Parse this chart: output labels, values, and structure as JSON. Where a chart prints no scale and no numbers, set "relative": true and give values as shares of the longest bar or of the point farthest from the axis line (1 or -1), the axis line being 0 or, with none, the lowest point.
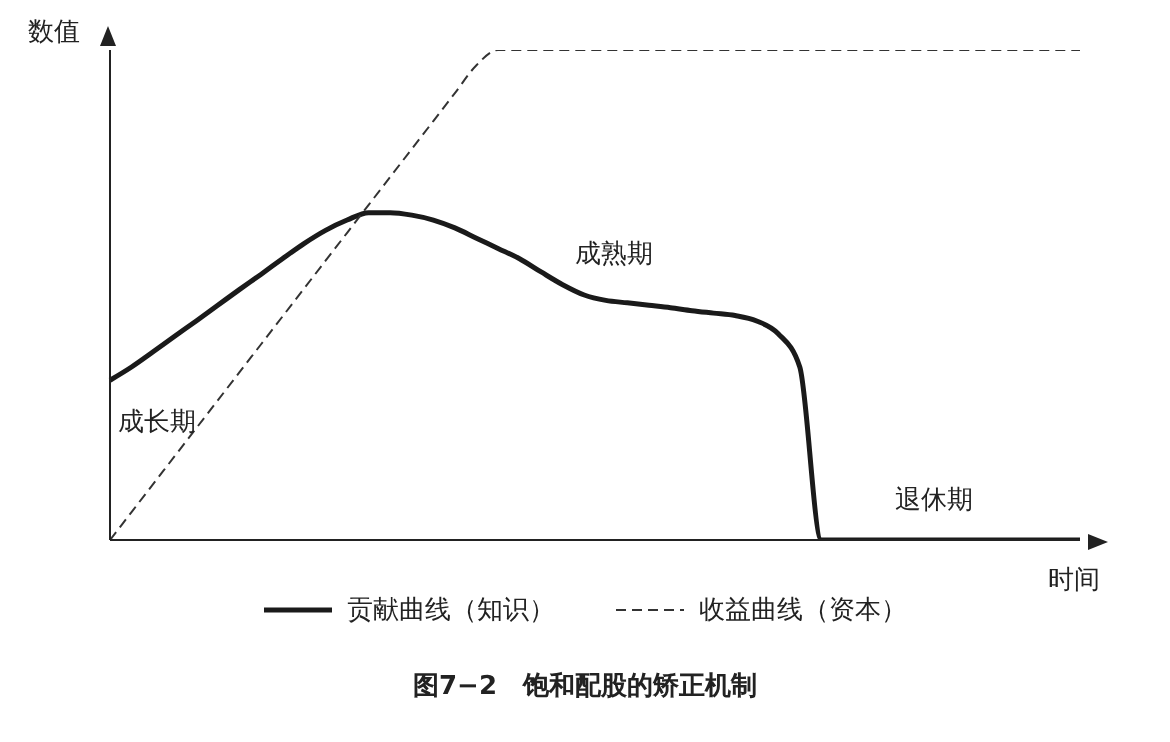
{
  "chart_data": {
    "type": "line",
    "title": "图7−2　饱和配股的矫正机制",
    "xlabel": "时间",
    "ylabel": "数值",
    "relative": true,
    "legend": "bottom",
    "grid": false,
    "marker": "none",
    "categories": [
      null,
      null,
      null,
      null,
      null,
      null,
      null,
      null,
      null,
      null,
      null,
      null,
      null,
      null,
      null,
      null,
      null,
      null,
      null,
      null,
      null,
      null,
      null,
      null,
      null,
      null,
      null,
      null,
      null,
      null,
      null,
      null,
      null,
      null,
      null,
      null,
      null,
      null,
      null,
      null,
      null,
      null,
      null,
      null,
      null,
      null
    ],
    "series": [
      {
        "name": "贡献曲线（知识）",
        "color": "#1a1a1a",
        "line_style": "solid",
        "values": [
          0.326,
          0.353,
          0.384,
          0.416,
          0.447,
          0.479,
          0.511,
          0.542,
          0.574,
          0.605,
          0.632,
          0.653,
          0.668,
          0.668,
          0.663,
          0.653,
          0.637,
          0.616,
          0.595,
          0.574,
          0.547,
          0.521,
          0.5,
          0.489,
          0.484,
          0.479,
          0.474,
          0.468,
          0.463,
          0.458,
          0.447,
          0.421,
          0.353,
          0,
          0,
          0,
          0,
          0,
          0,
          0,
          0,
          0,
          0,
          0,
          0,
          0
        ]
      },
      {
        "name": "收益曲线（资本）",
        "color": "#333333",
        "line_style": "dashed",
        "values": [
          0,
          0.057,
          0.114,
          0.171,
          0.228,
          0.285,
          0.342,
          0.399,
          0.456,
          0.513,
          0.57,
          0.627,
          0.684,
          0.741,
          0.798,
          0.855,
          0.912,
          0.969,
          1,
          1,
          1,
          1,
          1,
          1,
          1,
          1,
          1,
          1,
          1,
          1,
          1,
          1,
          1,
          1,
          1,
          1,
          1,
          1,
          1,
          1,
          1,
          1,
          1,
          1,
          1,
          1
        ]
      }
    ],
    "annotations": [
      "成长期",
      "成熟期",
      "退休期"
    ]
  }
}
